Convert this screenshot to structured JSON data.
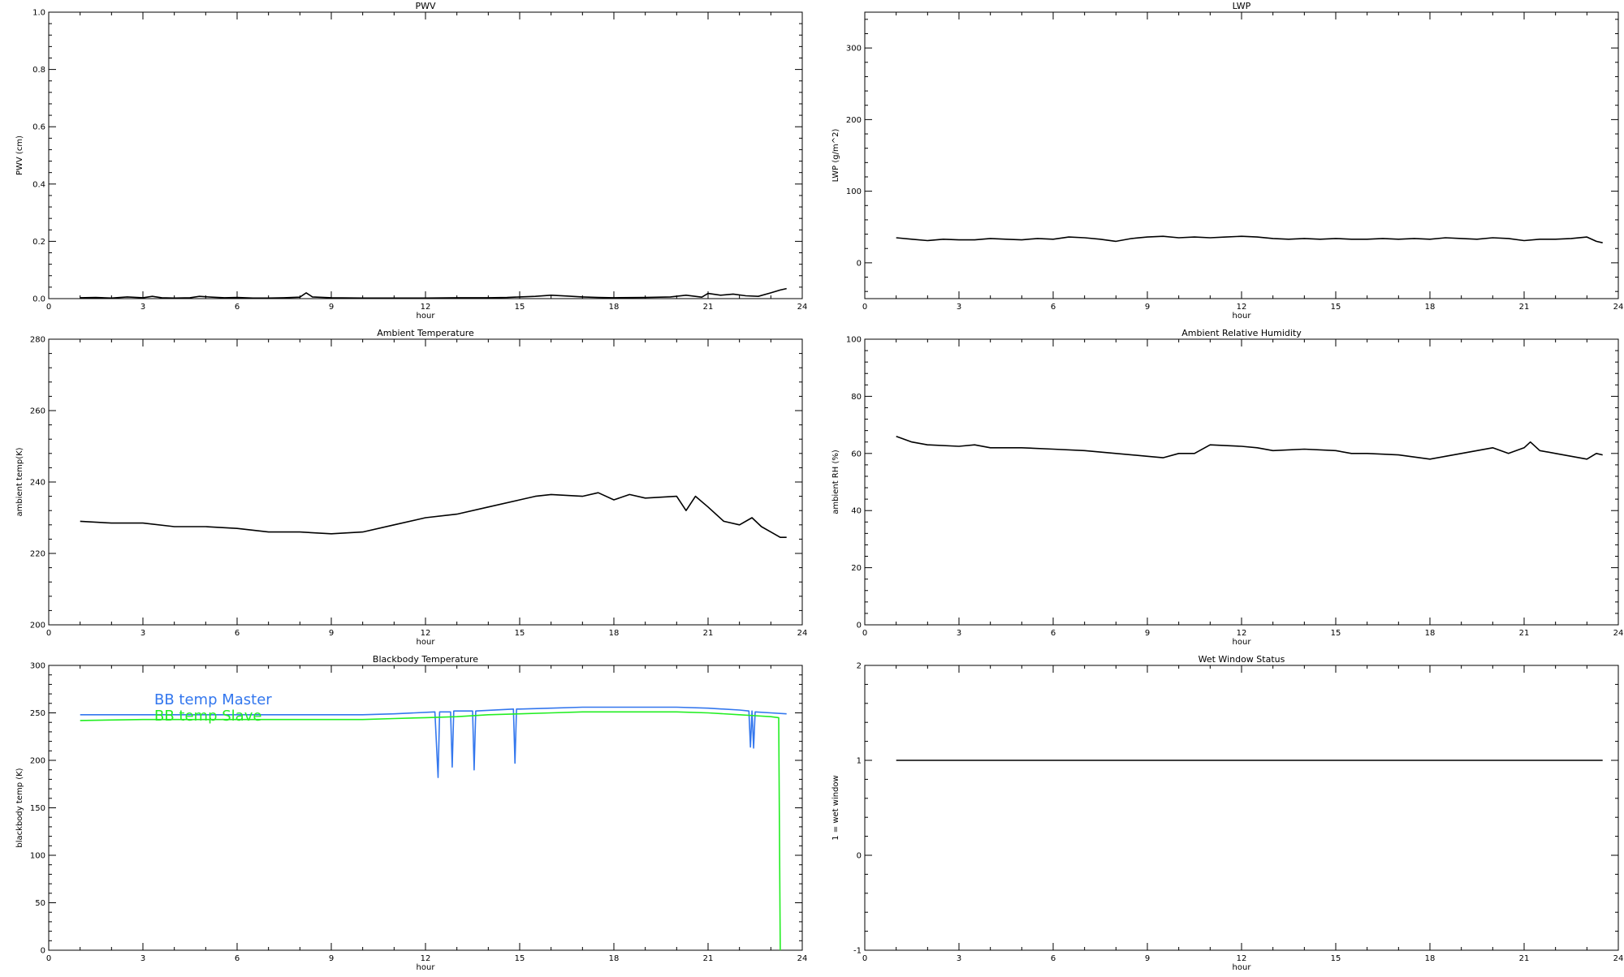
{
  "chart_data": [
    {
      "type": "line",
      "title": "PWV",
      "xlabel": "hour",
      "ylabel": "PWV (cm)",
      "xlim": [
        0,
        24
      ],
      "ylim": [
        0.0,
        1.0
      ],
      "xticks": [
        0,
        3,
        6,
        9,
        12,
        15,
        18,
        21,
        24
      ],
      "yticks": [
        0.0,
        0.2,
        0.4,
        0.6,
        0.8,
        1.0
      ],
      "ytick_decimals": 1,
      "series": [
        {
          "color": "#000000",
          "points": [
            [
              1,
              0.003
            ],
            [
              1.5,
              0.004
            ],
            [
              2,
              0.002
            ],
            [
              2.5,
              0.006
            ],
            [
              3,
              0.003
            ],
            [
              3.3,
              0.008
            ],
            [
              3.6,
              0.003
            ],
            [
              4,
              0.002
            ],
            [
              4.5,
              0.003
            ],
            [
              4.8,
              0.008
            ],
            [
              5.2,
              0.005
            ],
            [
              5.6,
              0.003
            ],
            [
              6,
              0.004
            ],
            [
              6.5,
              0.002
            ],
            [
              7,
              0.002
            ],
            [
              7.5,
              0.003
            ],
            [
              8,
              0.005
            ],
            [
              8.2,
              0.02
            ],
            [
              8.4,
              0.006
            ],
            [
              9,
              0.003
            ],
            [
              10,
              0.002
            ],
            [
              11,
              0.002
            ],
            [
              12,
              0.002
            ],
            [
              13,
              0.003
            ],
            [
              14,
              0.003
            ],
            [
              14.6,
              0.004
            ],
            [
              15,
              0.006
            ],
            [
              15.5,
              0.008
            ],
            [
              16,
              0.012
            ],
            [
              16.5,
              0.009
            ],
            [
              17,
              0.006
            ],
            [
              17.5,
              0.004
            ],
            [
              18,
              0.003
            ],
            [
              19,
              0.004
            ],
            [
              19.8,
              0.006
            ],
            [
              20.3,
              0.012
            ],
            [
              20.8,
              0.005
            ],
            [
              21,
              0.018
            ],
            [
              21.4,
              0.012
            ],
            [
              21.8,
              0.016
            ],
            [
              22.2,
              0.01
            ],
            [
              22.6,
              0.008
            ],
            [
              23,
              0.02
            ],
            [
              23.3,
              0.03
            ],
            [
              23.5,
              0.035
            ]
          ]
        }
      ]
    },
    {
      "type": "line",
      "title": "LWP",
      "xlabel": "hour",
      "ylabel": "LWP (g/m^2)",
      "xlim": [
        0,
        24
      ],
      "ylim": [
        -50,
        350
      ],
      "xticks": [
        0,
        3,
        6,
        9,
        12,
        15,
        18,
        21,
        24
      ],
      "yticks": [
        0,
        100,
        200,
        300
      ],
      "ytick_decimals": 0,
      "series": [
        {
          "color": "#000000",
          "points": [
            [
              1,
              35
            ],
            [
              1.5,
              33
            ],
            [
              2,
              31
            ],
            [
              2.5,
              33
            ],
            [
              3,
              32
            ],
            [
              3.5,
              32
            ],
            [
              4,
              34
            ],
            [
              4.5,
              33
            ],
            [
              5,
              32
            ],
            [
              5.5,
              34
            ],
            [
              6,
              33
            ],
            [
              6.5,
              36
            ],
            [
              7,
              35
            ],
            [
              7.5,
              33
            ],
            [
              8,
              30
            ],
            [
              8.5,
              34
            ],
            [
              9,
              36
            ],
            [
              9.5,
              37
            ],
            [
              10,
              35
            ],
            [
              10.5,
              36
            ],
            [
              11,
              35
            ],
            [
              11.5,
              36
            ],
            [
              12,
              37
            ],
            [
              12.5,
              36
            ],
            [
              13,
              34
            ],
            [
              13.5,
              33
            ],
            [
              14,
              34
            ],
            [
              14.5,
              33
            ],
            [
              15,
              34
            ],
            [
              15.5,
              33
            ],
            [
              16,
              33
            ],
            [
              16.5,
              34
            ],
            [
              17,
              33
            ],
            [
              17.5,
              34
            ],
            [
              18,
              33
            ],
            [
              18.5,
              35
            ],
            [
              19,
              34
            ],
            [
              19.5,
              33
            ],
            [
              20,
              35
            ],
            [
              20.5,
              34
            ],
            [
              21,
              31
            ],
            [
              21.5,
              33
            ],
            [
              22,
              33
            ],
            [
              22.5,
              34
            ],
            [
              23,
              36
            ],
            [
              23.3,
              30
            ],
            [
              23.5,
              28
            ]
          ]
        }
      ]
    },
    {
      "type": "line",
      "title": "Ambient Temperature",
      "xlabel": "hour",
      "ylabel": "ambient temp(K)",
      "xlim": [
        0,
        24
      ],
      "ylim": [
        200,
        280
      ],
      "xticks": [
        0,
        3,
        6,
        9,
        12,
        15,
        18,
        21,
        24
      ],
      "yticks": [
        200,
        220,
        240,
        260,
        280
      ],
      "ytick_decimals": 0,
      "series": [
        {
          "color": "#000000",
          "points": [
            [
              1,
              229
            ],
            [
              2,
              228.5
            ],
            [
              3,
              228.5
            ],
            [
              4,
              227.5
            ],
            [
              5,
              227.5
            ],
            [
              6,
              227
            ],
            [
              7,
              226
            ],
            [
              8,
              226
            ],
            [
              9,
              225.5
            ],
            [
              10,
              226
            ],
            [
              11,
              228
            ],
            [
              12,
              230
            ],
            [
              13,
              231
            ],
            [
              14,
              233
            ],
            [
              15,
              235
            ],
            [
              15.5,
              236
            ],
            [
              16,
              236.5
            ],
            [
              17,
              236
            ],
            [
              17.5,
              237
            ],
            [
              18,
              235
            ],
            [
              18.5,
              236.5
            ],
            [
              19,
              235.5
            ],
            [
              20,
              236
            ],
            [
              20.3,
              232
            ],
            [
              20.6,
              236
            ],
            [
              21,
              233
            ],
            [
              21.5,
              229
            ],
            [
              22,
              228
            ],
            [
              22.4,
              230
            ],
            [
              22.7,
              227.5
            ],
            [
              23,
              226
            ],
            [
              23.3,
              224.5
            ],
            [
              23.5,
              224.5
            ]
          ]
        }
      ]
    },
    {
      "type": "line",
      "title": "Ambient Relative Humidity",
      "xlabel": "hour",
      "ylabel": "ambient RH (%)",
      "xlim": [
        0,
        24
      ],
      "ylim": [
        0,
        100
      ],
      "xticks": [
        0,
        3,
        6,
        9,
        12,
        15,
        18,
        21,
        24
      ],
      "yticks": [
        0,
        20,
        40,
        60,
        80,
        100
      ],
      "ytick_decimals": 0,
      "series": [
        {
          "color": "#000000",
          "points": [
            [
              1,
              66
            ],
            [
              1.5,
              64
            ],
            [
              2,
              63
            ],
            [
              3,
              62.5
            ],
            [
              3.5,
              63
            ],
            [
              4,
              62
            ],
            [
              5,
              62
            ],
            [
              6,
              61.5
            ],
            [
              7,
              61
            ],
            [
              8,
              60
            ],
            [
              9,
              59
            ],
            [
              9.5,
              58.5
            ],
            [
              10,
              60
            ],
            [
              10.5,
              60
            ],
            [
              11,
              63
            ],
            [
              12,
              62.5
            ],
            [
              12.5,
              62
            ],
            [
              13,
              61
            ],
            [
              14,
              61.5
            ],
            [
              15,
              61
            ],
            [
              15.5,
              60
            ],
            [
              16,
              60
            ],
            [
              17,
              59.5
            ],
            [
              18,
              58
            ],
            [
              18.5,
              59
            ],
            [
              19,
              60
            ],
            [
              20,
              62
            ],
            [
              20.5,
              60
            ],
            [
              21,
              62
            ],
            [
              21.2,
              64
            ],
            [
              21.5,
              61
            ],
            [
              22,
              60
            ],
            [
              23,
              58
            ],
            [
              23.3,
              60
            ],
            [
              23.5,
              59.5
            ]
          ]
        }
      ]
    },
    {
      "type": "line",
      "title": "Blackbody Temperature",
      "xlabel": "hour",
      "ylabel": "blackbody temp (K)",
      "xlim": [
        0,
        24
      ],
      "ylim": [
        0,
        300
      ],
      "xticks": [
        0,
        3,
        6,
        9,
        12,
        15,
        18,
        21,
        24
      ],
      "yticks": [
        0,
        50,
        100,
        150,
        200,
        250,
        300
      ],
      "ytick_decimals": 0,
      "legend": "top-left",
      "series": [
        {
          "name": "BB temp Master",
          "color": "#3377ee",
          "points": [
            [
              1,
              248
            ],
            [
              3,
              248
            ],
            [
              6,
              248
            ],
            [
              9,
              248
            ],
            [
              10,
              248
            ],
            [
              11,
              249
            ],
            [
              12.3,
              251
            ],
            [
              12.4,
              182
            ],
            [
              12.45,
              251
            ],
            [
              12.8,
              251
            ],
            [
              12.85,
              193
            ],
            [
              12.9,
              252
            ],
            [
              13.5,
              252
            ],
            [
              13.55,
              190
            ],
            [
              13.6,
              252
            ],
            [
              14.8,
              254
            ],
            [
              14.85,
              197
            ],
            [
              14.9,
              254
            ],
            [
              15,
              254
            ],
            [
              16,
              255
            ],
            [
              17,
              256
            ],
            [
              18,
              256
            ],
            [
              19,
              256
            ],
            [
              20,
              256
            ],
            [
              21,
              255
            ],
            [
              22,
              253
            ],
            [
              22.3,
              252
            ],
            [
              22.35,
              214
            ],
            [
              22.4,
              252
            ],
            [
              22.45,
              213
            ],
            [
              22.5,
              251
            ],
            [
              23,
              250
            ],
            [
              23.5,
              249
            ]
          ]
        },
        {
          "name": "BB temp Slave",
          "color": "#22ee22",
          "points": [
            [
              1,
              242
            ],
            [
              3,
              243
            ],
            [
              6,
              243
            ],
            [
              9,
              243
            ],
            [
              10,
              243
            ],
            [
              11,
              244
            ],
            [
              12,
              245
            ],
            [
              13,
              246
            ],
            [
              14,
              248
            ],
            [
              15,
              249
            ],
            [
              16,
              250
            ],
            [
              17,
              251
            ],
            [
              18,
              251
            ],
            [
              19,
              251
            ],
            [
              20,
              251
            ],
            [
              21,
              250
            ],
            [
              22,
              248
            ],
            [
              22.5,
              247
            ],
            [
              23,
              246
            ],
            [
              23.25,
              245
            ],
            [
              23.3,
              0
            ]
          ]
        }
      ]
    },
    {
      "type": "line",
      "title": "Wet Window Status",
      "xlabel": "hour",
      "ylabel": "1 = wet window",
      "xlim": [
        0,
        24
      ],
      "ylim": [
        -1,
        2
      ],
      "xticks": [
        0,
        3,
        6,
        9,
        12,
        15,
        18,
        21,
        24
      ],
      "yticks": [
        -1,
        0,
        1,
        2
      ],
      "ytick_decimals": 0,
      "series": [
        {
          "color": "#000000",
          "points": [
            [
              1,
              1
            ],
            [
              23.5,
              1
            ]
          ]
        }
      ]
    }
  ]
}
